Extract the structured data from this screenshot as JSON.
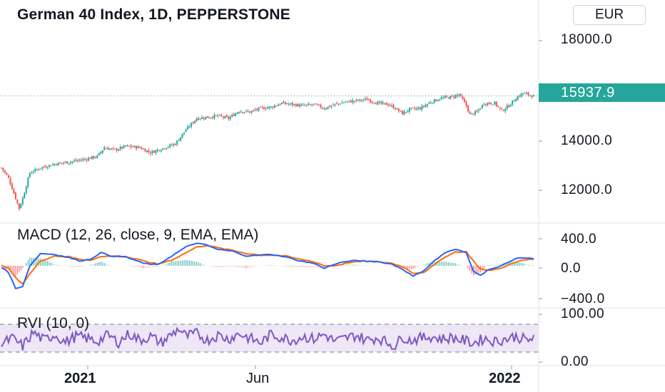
{
  "header": {
    "title": "German 40 Index, 1D, PEPPERSTONE",
    "currency": "EUR"
  },
  "price_axis": {
    "ticks": [
      "18000.0",
      "14000.0",
      "12000.0"
    ],
    "last_price": "15937.9"
  },
  "macd": {
    "title": "MACD (12, 26, close, 9, EMA, EMA)",
    "ticks": [
      "400.0",
      "0.0",
      "−400.0"
    ]
  },
  "rvi": {
    "title": "RVI (10, 0)",
    "ticks": [
      "100.00",
      "0.00"
    ]
  },
  "time_axis": {
    "labels": [
      "2021",
      "Jun",
      "2022"
    ]
  },
  "colors": {
    "up": "#26a69a",
    "down": "#ef5350",
    "macd_line": "#2962ff",
    "signal_line": "#ff6d00",
    "rvi_line": "#7e57c2",
    "rvi_band": "#ede7f6"
  },
  "chart_data": [
    {
      "type": "candlestick",
      "title": "German 40 Index, 1D, PEPPERSTONE",
      "ylim": [
        11000,
        18600
      ],
      "y_ticks": [
        12000,
        14000,
        18000
      ],
      "last_price": 15937.9,
      "x_ticks": [
        "2021",
        "Jun",
        "2022"
      ],
      "close_path": [
        [
          0,
          13100
        ],
        [
          4,
          12700
        ],
        [
          8,
          11900
        ],
        [
          10,
          11500
        ],
        [
          12,
          11900
        ],
        [
          16,
          12900
        ],
        [
          22,
          13100
        ],
        [
          30,
          13250
        ],
        [
          40,
          13350
        ],
        [
          48,
          13450
        ],
        [
          54,
          13550
        ],
        [
          58,
          13900
        ],
        [
          64,
          13800
        ],
        [
          70,
          13950
        ],
        [
          78,
          13900
        ],
        [
          84,
          13700
        ],
        [
          90,
          13850
        ],
        [
          98,
          14050
        ],
        [
          104,
          14600
        ],
        [
          110,
          15050
        ],
        [
          116,
          15100
        ],
        [
          122,
          15150
        ],
        [
          128,
          15050
        ],
        [
          134,
          15350
        ],
        [
          140,
          15300
        ],
        [
          146,
          15450
        ],
        [
          152,
          15500
        ],
        [
          158,
          15650
        ],
        [
          164,
          15600
        ],
        [
          170,
          15550
        ],
        [
          176,
          15600
        ],
        [
          182,
          15450
        ],
        [
          188,
          15600
        ],
        [
          194,
          15700
        ],
        [
          200,
          15750
        ],
        [
          206,
          15800
        ],
        [
          212,
          15650
        ],
        [
          218,
          15600
        ],
        [
          222,
          15450
        ],
        [
          226,
          15250
        ],
        [
          230,
          15400
        ],
        [
          236,
          15450
        ],
        [
          242,
          15700
        ],
        [
          248,
          15850
        ],
        [
          254,
          15900
        ],
        [
          258,
          16000
        ],
        [
          262,
          15550
        ],
        [
          264,
          15200
        ],
        [
          268,
          15300
        ],
        [
          272,
          15650
        ],
        [
          278,
          15650
        ],
        [
          282,
          15350
        ],
        [
          286,
          15550
        ],
        [
          290,
          15850
        ],
        [
          294,
          16050
        ],
        [
          296,
          16000
        ],
        [
          300,
          15937.9
        ]
      ]
    },
    {
      "type": "line",
      "title": "MACD (12, 26, close, 9, EMA, EMA)",
      "ylim": [
        -500,
        480
      ],
      "y_ticks": [
        -400,
        0,
        400
      ],
      "series": [
        {
          "name": "MACD",
          "points": [
            [
              0,
              -20
            ],
            [
              4,
              -80
            ],
            [
              8,
              -280
            ],
            [
              12,
              -250
            ],
            [
              16,
              0
            ],
            [
              22,
              150
            ],
            [
              30,
              140
            ],
            [
              38,
              100
            ],
            [
              44,
              60
            ],
            [
              50,
              80
            ],
            [
              56,
              160
            ],
            [
              62,
              120
            ],
            [
              70,
              110
            ],
            [
              80,
              30
            ],
            [
              88,
              10
            ],
            [
              96,
              120
            ],
            [
              104,
              230
            ],
            [
              110,
              280
            ],
            [
              116,
              250
            ],
            [
              122,
              200
            ],
            [
              130,
              180
            ],
            [
              138,
              120
            ],
            [
              146,
              130
            ],
            [
              152,
              140
            ],
            [
              160,
              110
            ],
            [
              168,
              60
            ],
            [
              176,
              30
            ],
            [
              182,
              -30
            ],
            [
              188,
              20
            ],
            [
              196,
              60
            ],
            [
              204,
              60
            ],
            [
              212,
              50
            ],
            [
              220,
              20
            ],
            [
              226,
              -40
            ],
            [
              232,
              -130
            ],
            [
              238,
              -60
            ],
            [
              244,
              60
            ],
            [
              250,
              160
            ],
            [
              256,
              200
            ],
            [
              262,
              160
            ],
            [
              266,
              -60
            ],
            [
              270,
              -120
            ],
            [
              274,
              -50
            ],
            [
              280,
              -20
            ],
            [
              286,
              50
            ],
            [
              292,
              100
            ],
            [
              298,
              90
            ]
          ]
        },
        {
          "name": "Signal",
          "points": [
            [
              0,
              0
            ],
            [
              4,
              -30
            ],
            [
              8,
              -150
            ],
            [
              12,
              -220
            ],
            [
              16,
              -100
            ],
            [
              22,
              60
            ],
            [
              30,
              120
            ],
            [
              38,
              110
            ],
            [
              44,
              80
            ],
            [
              50,
              70
            ],
            [
              56,
              110
            ],
            [
              62,
              120
            ],
            [
              70,
              110
            ],
            [
              80,
              60
            ],
            [
              88,
              20
            ],
            [
              96,
              70
            ],
            [
              104,
              160
            ],
            [
              110,
              230
            ],
            [
              116,
              250
            ],
            [
              122,
              220
            ],
            [
              130,
              190
            ],
            [
              138,
              150
            ],
            [
              146,
              130
            ],
            [
              152,
              130
            ],
            [
              160,
              120
            ],
            [
              168,
              80
            ],
            [
              176,
              50
            ],
            [
              182,
              0
            ],
            [
              188,
              0
            ],
            [
              196,
              40
            ],
            [
              204,
              55
            ],
            [
              212,
              50
            ],
            [
              220,
              30
            ],
            [
              226,
              -10
            ],
            [
              232,
              -90
            ],
            [
              238,
              -80
            ],
            [
              244,
              10
            ],
            [
              250,
              110
            ],
            [
              256,
              170
            ],
            [
              262,
              170
            ],
            [
              266,
              60
            ],
            [
              270,
              -40
            ],
            [
              274,
              -60
            ],
            [
              280,
              -40
            ],
            [
              286,
              10
            ],
            [
              292,
              60
            ],
            [
              298,
              80
            ]
          ]
        }
      ]
    },
    {
      "type": "line",
      "title": "RVI (10, 0)",
      "ylim": [
        0,
        100
      ],
      "y_ticks": [
        0,
        100
      ],
      "series": [
        {
          "name": "RVI",
          "points": [
            [
              0,
              35
            ],
            [
              6,
              50
            ],
            [
              12,
              30
            ],
            [
              18,
              65
            ],
            [
              24,
              45
            ],
            [
              30,
              60
            ],
            [
              36,
              40
            ],
            [
              42,
              55
            ],
            [
              48,
              50
            ],
            [
              54,
              42
            ],
            [
              60,
              58
            ],
            [
              66,
              40
            ],
            [
              72,
              62
            ],
            [
              78,
              45
            ],
            [
              84,
              55
            ],
            [
              90,
              38
            ],
            [
              96,
              60
            ],
            [
              100,
              75
            ],
            [
              104,
              55
            ],
            [
              110,
              62
            ],
            [
              116,
              45
            ],
            [
              122,
              58
            ],
            [
              128,
              48
            ],
            [
              134,
              62
            ],
            [
              140,
              50
            ],
            [
              146,
              38
            ],
            [
              152,
              60
            ],
            [
              158,
              52
            ],
            [
              164,
              45
            ],
            [
              170,
              55
            ],
            [
              176,
              48
            ],
            [
              182,
              60
            ],
            [
              188,
              42
            ],
            [
              194,
              50
            ],
            [
              200,
              58
            ],
            [
              206,
              45
            ],
            [
              212,
              52
            ],
            [
              218,
              38
            ],
            [
              222,
              30
            ],
            [
              226,
              55
            ],
            [
              230,
              45
            ],
            [
              236,
              50
            ],
            [
              242,
              55
            ],
            [
              248,
              48
            ],
            [
              254,
              52
            ],
            [
              260,
              45
            ],
            [
              266,
              38
            ],
            [
              272,
              50
            ],
            [
              278,
              42
            ],
            [
              284,
              48
            ],
            [
              290,
              55
            ],
            [
              296,
              45
            ],
            [
              300,
              50
            ]
          ]
        }
      ]
    }
  ]
}
